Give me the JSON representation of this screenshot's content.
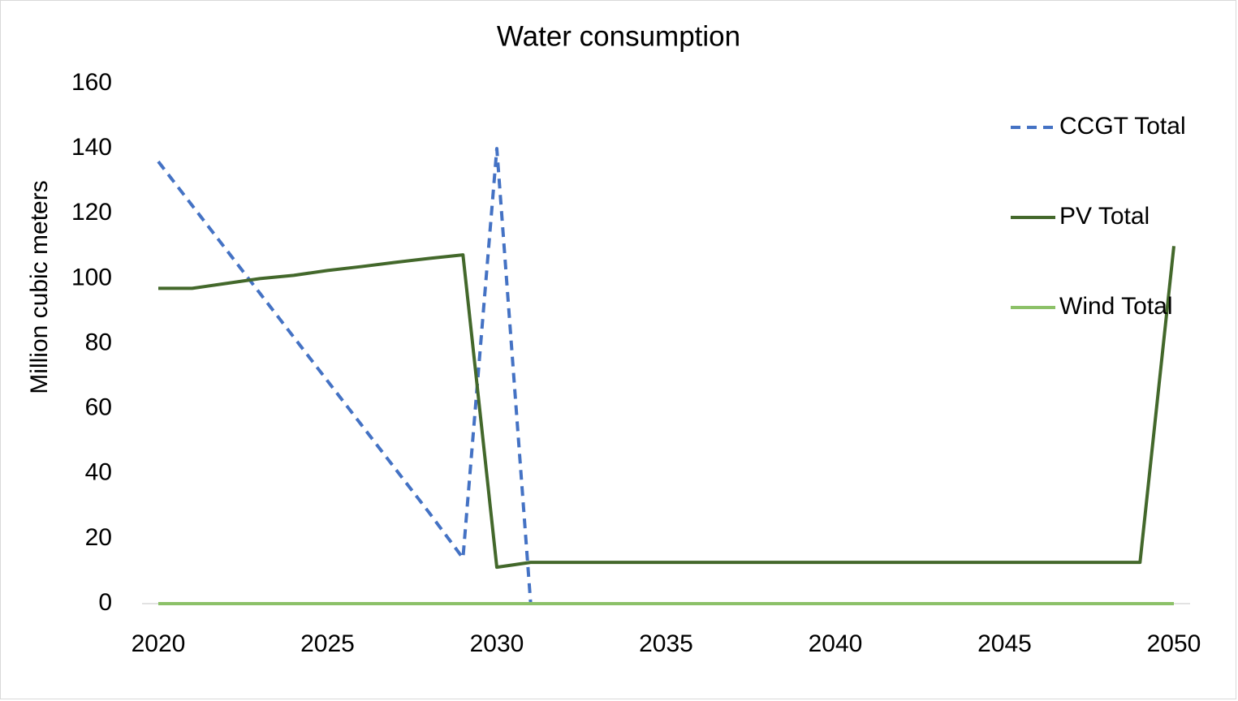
{
  "chart_data": {
    "type": "line",
    "title": "Water consumption",
    "y_label": "Million cubic meters",
    "x": [
      2020,
      2021,
      2022,
      2023,
      2024,
      2025,
      2026,
      2027,
      2028,
      2029,
      2030,
      2031,
      2032,
      2033,
      2034,
      2035,
      2036,
      2037,
      2038,
      2039,
      2040,
      2041,
      2042,
      2043,
      2044,
      2045,
      2046,
      2047,
      2048,
      2049,
      2050
    ],
    "series": [
      {
        "name": "CCGT Total",
        "color": "#4472c4",
        "dash": true,
        "values": [
          136,
          122.5,
          109,
          95.5,
          82,
          68.5,
          55,
          41.5,
          28,
          14,
          140,
          0,
          0,
          0,
          0,
          0,
          0,
          0,
          0,
          0,
          0,
          0,
          0,
          0,
          0,
          0,
          0,
          0,
          0,
          0,
          0
        ]
      },
      {
        "name": "PV Total",
        "color": "#43682b",
        "dash": false,
        "values": [
          97,
          97,
          98.5,
          100,
          101,
          102.5,
          103.7,
          105,
          106.2,
          107.3,
          11.2,
          12.7,
          12.7,
          12.7,
          12.7,
          12.7,
          12.7,
          12.7,
          12.7,
          12.7,
          12.7,
          12.7,
          12.7,
          12.7,
          12.7,
          12.7,
          12.7,
          12.7,
          12.7,
          12.7,
          110
        ]
      },
      {
        "name": "Wind Total",
        "color": "#8cc168",
        "dash": false,
        "values": [
          0,
          0,
          0,
          0,
          0,
          0,
          0,
          0,
          0,
          0,
          0,
          0,
          0,
          0,
          0,
          0,
          0,
          0,
          0,
          0,
          0,
          0,
          0,
          0,
          0,
          0,
          0,
          0,
          0,
          0,
          0
        ]
      }
    ],
    "xlim": [
      2020,
      2050
    ],
    "xticks": [
      2020,
      2025,
      2030,
      2035,
      2040,
      2045,
      2050
    ],
    "ylim": [
      0,
      160
    ],
    "yticks": [
      0,
      20,
      40,
      60,
      80,
      100,
      120,
      140,
      160
    ],
    "grid": false,
    "legend": "right"
  }
}
